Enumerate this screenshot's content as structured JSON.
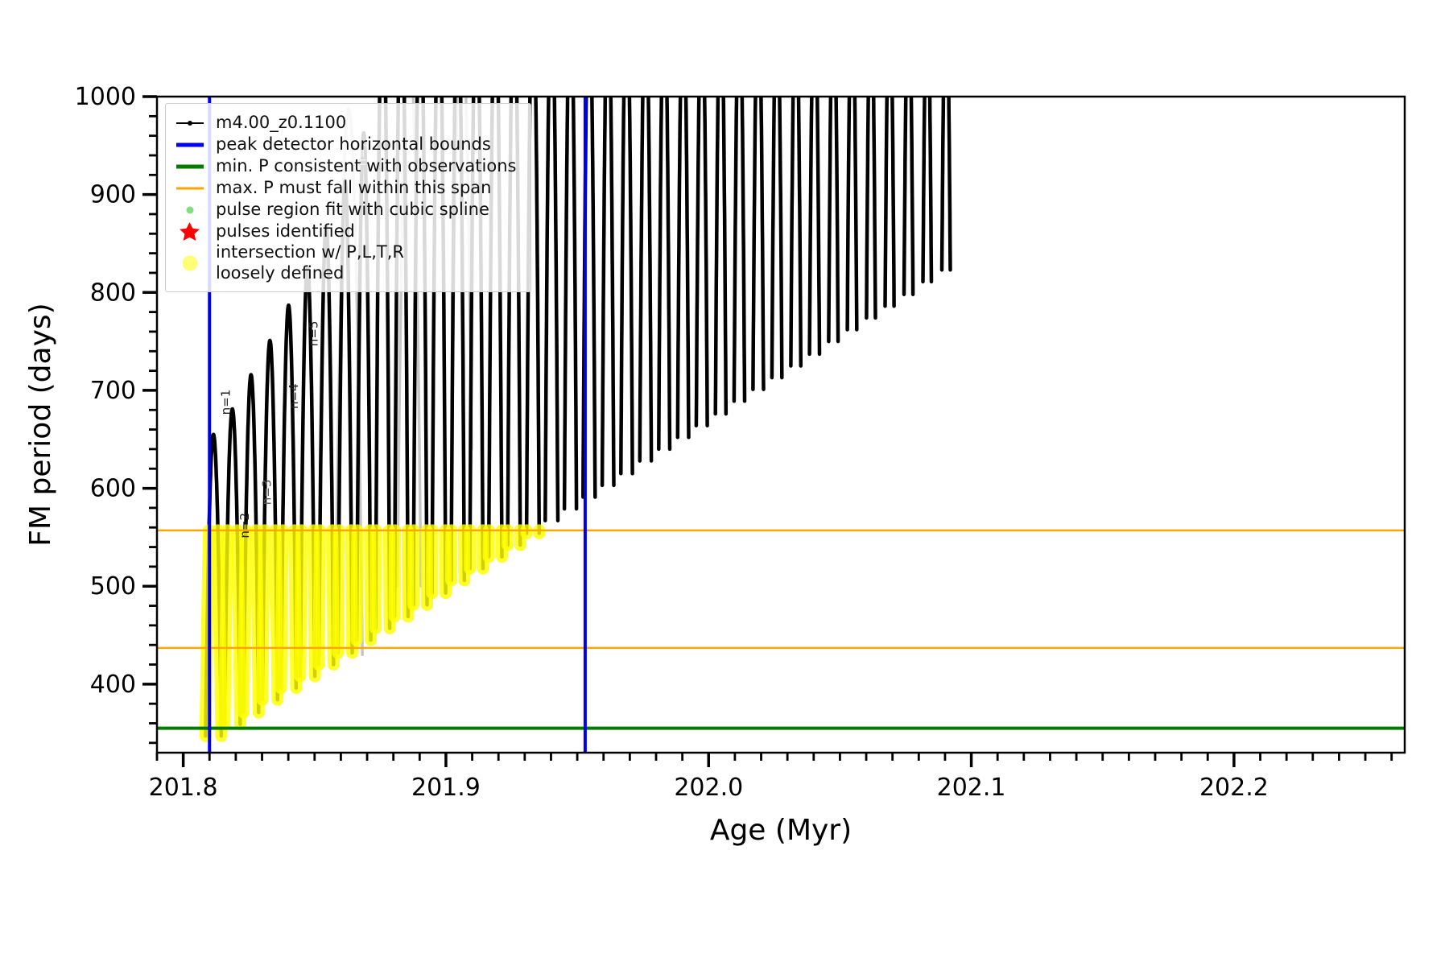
{
  "chart_data": {
    "type": "line",
    "title": "",
    "xlabel": "Age (Myr)",
    "ylabel": "FM period (days)",
    "xlim": [
      201.79,
      202.265
    ],
    "ylim": [
      330,
      1000
    ],
    "xtick_values": [
      201.8,
      201.9,
      202.0,
      202.1,
      202.2
    ],
    "xtick_labels": [
      "201.8",
      "201.9",
      "202.0",
      "202.1",
      "202.2"
    ],
    "ytick_values": [
      400,
      500,
      600,
      700,
      800,
      900,
      1000
    ],
    "ytick_labels": [
      "400",
      "500",
      "600",
      "700",
      "800",
      "900",
      "1000"
    ],
    "x_minor_step": 0.01,
    "y_minor_step": 20,
    "grid": false,
    "legend_position": "upper-left",
    "series_label": "m4.00_z0.1100",
    "colors": {
      "series": "#000000",
      "peak_bounds": "#0000ee",
      "min_p": "#007a00",
      "max_p_span": "#ffa500",
      "pulse_fit": "#7fe07f",
      "pulses_identified": "#ff0000",
      "intersection": "#ffff00",
      "ghost": "#c6c6c6"
    },
    "vlines": {
      "label": "peak detector horizontal bounds",
      "x": [
        201.81,
        201.953
      ]
    },
    "hlines": [
      {
        "name": "min-p-consistent",
        "y": 355,
        "color": "#007a00",
        "width": 4
      },
      {
        "name": "max-p-span-upper",
        "y": 557,
        "color": "#ffa500",
        "width": 2.5
      },
      {
        "name": "max-p-span-lower",
        "y": 437,
        "color": "#ffa500",
        "width": 2.5
      }
    ],
    "yellow_ceiling": 557,
    "yellow_max_x": 201.9555,
    "pulse_fields": [
      "age_myr",
      "p_min_days",
      "p_peak_days",
      "half_width_myr"
    ],
    "pulses": [
      [
        201.8115,
        347,
        655,
        0.003
      ],
      [
        201.8187,
        359,
        681,
        0.003
      ],
      [
        201.8258,
        371,
        716,
        0.0029
      ],
      [
        201.833,
        384,
        751,
        0.0029
      ],
      [
        201.8401,
        396,
        787,
        0.0029
      ],
      [
        201.8473,
        408,
        826,
        0.0028
      ],
      [
        201.8544,
        420,
        868,
        0.0028
      ],
      [
        201.8616,
        432,
        914,
        0.0027
      ],
      [
        201.8687,
        445,
        963,
        0.0027
      ],
      [
        201.8759,
        457,
        1120,
        0.0027
      ],
      [
        201.883,
        469,
        1120,
        0.0026
      ],
      [
        201.8902,
        481,
        1120,
        0.0026
      ],
      [
        201.8973,
        493,
        1120,
        0.0026
      ],
      [
        201.9045,
        506,
        1120,
        0.0025
      ],
      [
        201.9116,
        518,
        1120,
        0.0025
      ],
      [
        201.9188,
        530,
        1120,
        0.0025
      ],
      [
        201.9259,
        542,
        1120,
        0.0024
      ],
      [
        201.9331,
        554,
        1120,
        0.0024
      ],
      [
        201.9402,
        567,
        1120,
        0.0024
      ],
      [
        201.9474,
        579,
        1120,
        0.0023
      ],
      [
        201.9545,
        591,
        1120,
        0.0023
      ],
      [
        201.9617,
        603,
        1120,
        0.0022
      ],
      [
        201.9688,
        615,
        1120,
        0.0022
      ],
      [
        201.976,
        628,
        1120,
        0.0022
      ],
      [
        201.9831,
        640,
        1120,
        0.0021
      ],
      [
        201.9903,
        652,
        1120,
        0.0021
      ],
      [
        201.9974,
        664,
        1120,
        0.0021
      ],
      [
        202.0046,
        676,
        1120,
        0.002
      ],
      [
        202.0117,
        689,
        1120,
        0.002
      ],
      [
        202.0189,
        701,
        1120,
        0.002
      ],
      [
        202.026,
        713,
        1120,
        0.0019
      ],
      [
        202.0332,
        725,
        1120,
        0.0019
      ],
      [
        202.0403,
        737,
        1120,
        0.0019
      ],
      [
        202.0475,
        750,
        1120,
        0.0018
      ],
      [
        202.0546,
        762,
        1120,
        0.0018
      ],
      [
        202.0618,
        774,
        1120,
        0.0017
      ],
      [
        202.0689,
        786,
        1120,
        0.0017
      ],
      [
        202.0761,
        798,
        1120,
        0.0017
      ],
      [
        202.0832,
        811,
        1120,
        0.0016
      ],
      [
        202.0904,
        823,
        1120,
        0.0016
      ]
    ],
    "ghost_pulses": [
      [
        201.863,
        430,
        988,
        0.0052
      ],
      [
        201.886,
        500,
        1070,
        0.0045
      ],
      [
        201.906,
        640,
        1080,
        0.0038
      ]
    ],
    "annotations": [
      {
        "text": "n=1",
        "x": 201.8178,
        "y": 688,
        "color": "#222222"
      },
      {
        "text": "n=2",
        "x": 201.825,
        "y": 562,
        "color": "#222222"
      },
      {
        "text": "n=3",
        "x": 201.8333,
        "y": 596,
        "color": "#555555"
      },
      {
        "text": "n=4",
        "x": 201.8436,
        "y": 694,
        "color": "#222222"
      },
      {
        "text": "n=5",
        "x": 201.8512,
        "y": 758,
        "color": "#222222"
      },
      {
        "text": "n=7",
        "x": 201.8695,
        "y": 942,
        "color": "#b5b5b5"
      }
    ]
  },
  "legend": {
    "items": [
      {
        "marker": "line-dot",
        "color": "#000000",
        "label": "m4.00_z0.1100"
      },
      {
        "marker": "thick-line",
        "color": "#0000ee",
        "label": "peak detector horizontal bounds"
      },
      {
        "marker": "thick-line",
        "color": "#007a00",
        "label": "min. P consistent with observations"
      },
      {
        "marker": "thin-line",
        "color": "#ffa500",
        "label": "max. P must fall within this span"
      },
      {
        "marker": "dot-small",
        "color": "#7fe07f",
        "label": "pulse region fit with cubic spline"
      },
      {
        "marker": "star",
        "color": "#ff0000",
        "label": "pulses identified"
      },
      {
        "marker": "dot-large",
        "color": "#ffff3c",
        "label": "intersection w/ P,L,T,R\nloosely defined"
      }
    ]
  }
}
